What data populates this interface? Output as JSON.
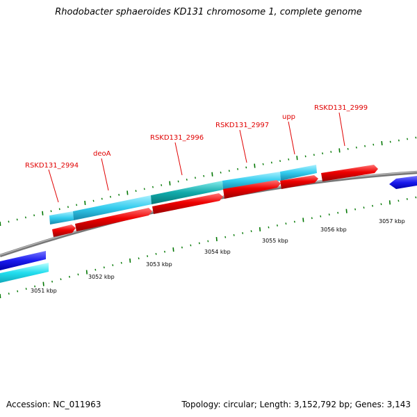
{
  "title": "Rhodobacter sphaeroides KD131 chromosome 1, complete genome",
  "footer": {
    "accession": "Accession: NC_011963",
    "summary": "Topology: circular; Length: 3,152,792 bp; Genes: 3,143"
  },
  "colors": {
    "cds": "#ee0000",
    "gene_track": "#33ccee",
    "gene_track_alt": "#11aaaa",
    "other_strand_dark": "#1a1aee",
    "other_strand_light": "#22ddee",
    "backbone": "#888888",
    "tick": "#007700",
    "label": "#e00000"
  },
  "map": {
    "gene_labels": [
      "RSKD131_2994",
      "deoA",
      "RSKD131_2996",
      "RSKD131_2997",
      "upp",
      "RSKD131_2999"
    ],
    "scale_labels": [
      "3051 kbp",
      "3052 kbp",
      "3053 kbp",
      "3054 kbp",
      "3055 kbp",
      "3056 kbp",
      "3057 kbp"
    ]
  }
}
